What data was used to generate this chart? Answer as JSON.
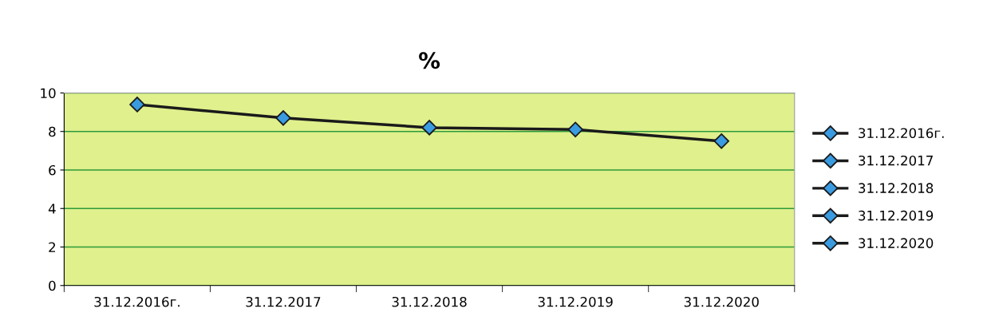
{
  "chart_data": {
    "type": "line",
    "title": "%",
    "categories": [
      "31.12.2016г.",
      "31.12.2017",
      "31.12.2018",
      "31.12.2019",
      "31.12.2020"
    ],
    "series": [
      {
        "color": "#1a1a1a",
        "values": [
          9.4,
          8.7,
          8.2,
          8.1,
          7.5
        ],
        "marker": "none"
      },
      {
        "name": "31.12.2016г.",
        "color": "#3a9be0",
        "values": [
          9.4,
          null,
          null,
          null,
          null
        ]
      },
      {
        "name": "31.12.2017",
        "color": "#3a9be0",
        "values": [
          null,
          8.7,
          null,
          null,
          null
        ]
      },
      {
        "name": "31.12.2018",
        "color": "#3a9be0",
        "values": [
          null,
          null,
          8.2,
          null,
          null
        ]
      },
      {
        "name": "31.12.2019",
        "color": "#3a9be0",
        "values": [
          null,
          null,
          null,
          8.1,
          null
        ]
      },
      {
        "name": "31.12.2020",
        "color": "#3a9be0",
        "values": [
          null,
          null,
          null,
          null,
          7.5
        ]
      }
    ],
    "ylim": [
      0,
      10
    ],
    "yticks": [
      0,
      2,
      4,
      6,
      8,
      10
    ],
    "grid": "y",
    "legend": "right",
    "marker": "diamond",
    "line_style": "solid"
  }
}
